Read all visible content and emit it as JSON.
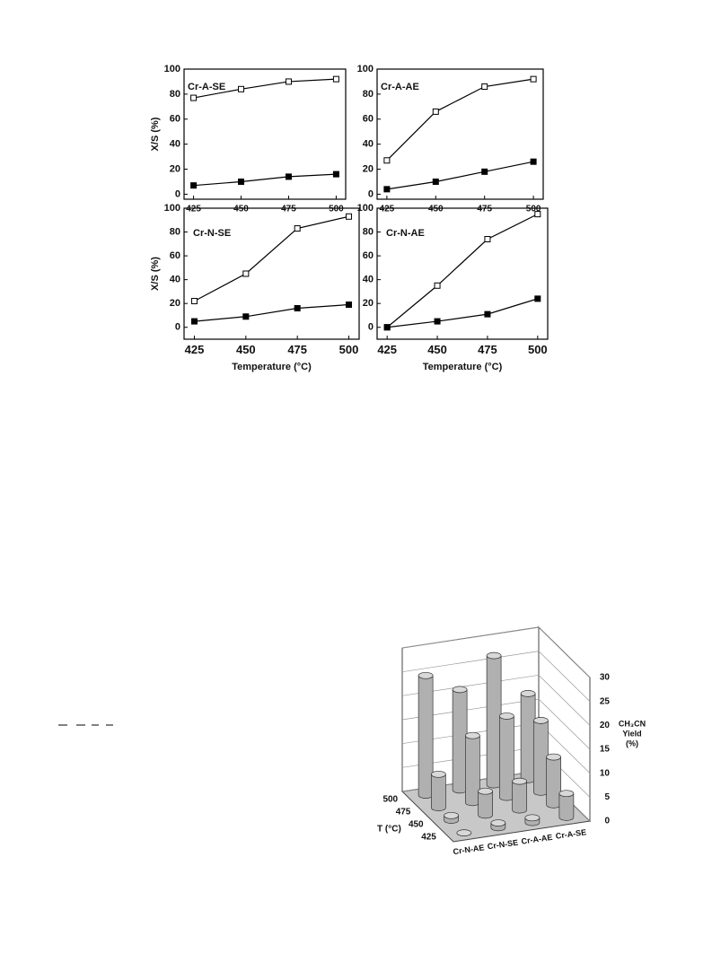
{
  "chart_data": [
    {
      "type": "line",
      "title": "Cr-A-SE",
      "y_label": "X/S (%)",
      "x": [
        425,
        450,
        475,
        500
      ],
      "xlim": [
        420,
        505
      ],
      "xticks": [
        425,
        450,
        475,
        500
      ],
      "ylim": [
        -4,
        100
      ],
      "yticks": [
        0,
        20,
        40,
        60,
        80,
        100
      ],
      "series": [
        {
          "color": "#000000",
          "fill": "#ffffff",
          "values": [
            77,
            84,
            90,
            92
          ]
        },
        {
          "color": "#000000",
          "fill": "#000000",
          "values": [
            7,
            10,
            14,
            16
          ]
        }
      ]
    },
    {
      "type": "line",
      "title": "Cr-A-AE",
      "x": [
        425,
        450,
        475,
        500
      ],
      "xlim": [
        420,
        505
      ],
      "xticks": [
        425,
        450,
        475,
        500
      ],
      "ylim": [
        -4,
        100
      ],
      "yticks": [
        0,
        20,
        40,
        60,
        80,
        100
      ],
      "series": [
        {
          "color": "#000000",
          "fill": "#ffffff",
          "values": [
            27,
            66,
            86,
            92
          ]
        },
        {
          "color": "#000000",
          "fill": "#000000",
          "values": [
            4,
            10,
            18,
            26
          ]
        }
      ]
    },
    {
      "type": "line",
      "title": "Cr-N-SE",
      "y_label": "X/S (%)",
      "x_label": "Temperature (°C)",
      "x": [
        425,
        450,
        475,
        500
      ],
      "xlim": [
        420,
        505
      ],
      "xticks": [
        425,
        450,
        475,
        500
      ],
      "ylim": [
        -10,
        100
      ],
      "yticks": [
        0,
        20,
        40,
        60,
        80,
        100
      ],
      "series": [
        {
          "color": "#000000",
          "fill": "#ffffff",
          "values": [
            22,
            45,
            83,
            93
          ]
        },
        {
          "color": "#000000",
          "fill": "#000000",
          "values": [
            5,
            9,
            16,
            19
          ]
        }
      ]
    },
    {
      "type": "line",
      "title": "Cr-N-AE",
      "x_label": "Temperature (°C)",
      "x": [
        425,
        450,
        475,
        500
      ],
      "xlim": [
        420,
        505
      ],
      "xticks": [
        425,
        450,
        475,
        500
      ],
      "ylim": [
        -10,
        100
      ],
      "yticks": [
        0,
        20,
        40,
        60,
        80,
        100
      ],
      "series": [
        {
          "color": "#000000",
          "fill": "#ffffff",
          "values": [
            0,
            35,
            74,
            95
          ]
        },
        {
          "color": "#000000",
          "fill": "#000000",
          "values": [
            0,
            5,
            11,
            24
          ]
        }
      ]
    },
    {
      "type": "bar3d",
      "categories": [
        "Cr-N-AE",
        "Cr-N-SE",
        "Cr-A-AE",
        "Cr-A-SE"
      ],
      "depth_categories": [
        425,
        450,
        475,
        500
      ],
      "depth_label": "T (°C)",
      "z_label": [
        "CH₃CN",
        "Yield",
        "(%)"
      ],
      "zlim": [
        0,
        30
      ],
      "zticks": [
        0,
        5,
        10,
        15,
        20,
        25,
        30
      ],
      "color": "#b0b0b0",
      "values": [
        [
          0,
          1,
          7,
          25
        ],
        [
          1,
          5,
          14,
          21
        ],
        [
          1,
          6,
          17,
          27
        ],
        [
          5,
          10,
          15,
          18
        ]
      ]
    }
  ]
}
